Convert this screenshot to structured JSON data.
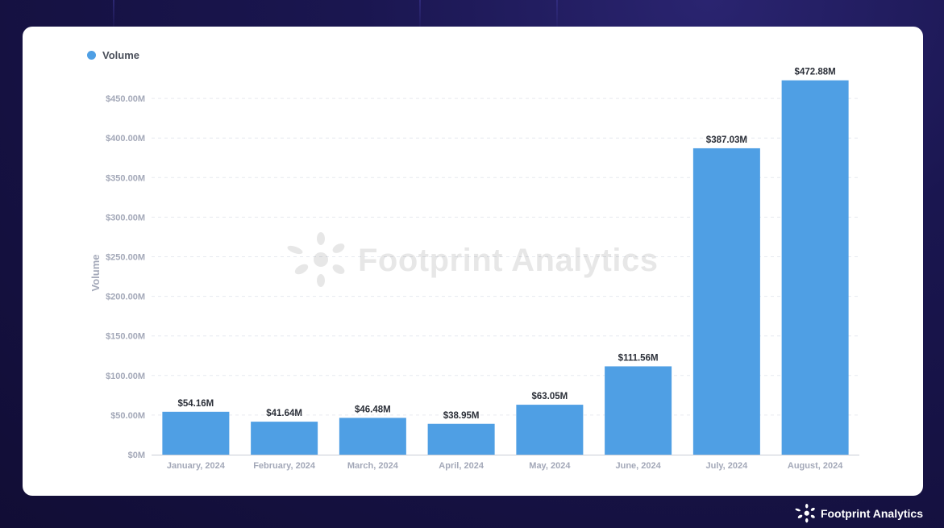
{
  "brand": {
    "name": "Footprint Analytics",
    "logo_icon": "footprint-flower-icon"
  },
  "colors": {
    "bar": "#4f9fe4",
    "axis_text": "#a3a8b8",
    "data_label": "#2b2f38",
    "grid": "#e6e9ef"
  },
  "chart_data": {
    "type": "bar",
    "legend_position": "top-left",
    "grid": true,
    "ylabel": "Volume",
    "xlabel": "",
    "ylim": [
      0,
      500
    ],
    "yticks": [
      0,
      50,
      100,
      150,
      200,
      250,
      300,
      350,
      400,
      450
    ],
    "ytick_labels": [
      "$0M",
      "$50.00M",
      "$100.00M",
      "$150.00M",
      "$200.00M",
      "$250.00M",
      "$300.00M",
      "$350.00M",
      "$400.00M",
      "$450.00M"
    ],
    "categories": [
      "January, 2024",
      "February, 2024",
      "March, 2024",
      "April, 2024",
      "May, 2024",
      "June, 2024",
      "July, 2024",
      "August, 2024"
    ],
    "series": [
      {
        "name": "Volume",
        "values": [
          54.16,
          41.64,
          46.48,
          38.95,
          63.05,
          111.56,
          387.03,
          472.88
        ],
        "labels": [
          "$54.16M",
          "$41.64M",
          "$46.48M",
          "$38.95M",
          "$63.05M",
          "$111.56M",
          "$387.03M",
          "$472.88M"
        ]
      }
    ]
  }
}
